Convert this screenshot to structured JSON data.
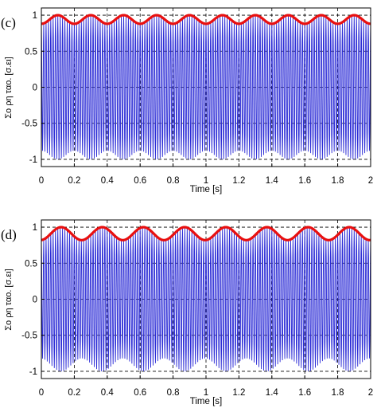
{
  "chart_data": [
    {
      "type": "line",
      "panel_label": "(c)",
      "xlabel": "Time [s]",
      "ylabel": "Σο ρη ταο. [σ.ει]",
      "xlim": [
        0,
        2
      ],
      "ylim": [
        -1.1,
        1.1
      ],
      "xticks": [
        "0",
        "0.2",
        "0.4",
        "0.6",
        "0.8",
        "1",
        "1.2",
        "1.4",
        "1.6",
        "1.8",
        "2"
      ],
      "yticks": [
        "1",
        "0.5",
        "0",
        "-0.5",
        "-1"
      ],
      "grid": "dashed",
      "colors": {
        "carrier": "#2b2bd6",
        "envelope": "#e81010"
      },
      "series": [
        {
          "role": "carrier",
          "carrier_cycles": 140,
          "amplitude_min": 0.88,
          "amplitude_max": 1.0,
          "envelope_period_s": 0.2,
          "envelope_first_peak_s": 0.1
        },
        {
          "role": "envelope",
          "x": [
            0,
            0.1,
            0.2,
            0.3,
            0.4,
            0.5,
            0.6,
            0.7,
            0.8,
            0.9,
            1.0,
            1.1,
            1.2,
            1.3,
            1.4,
            1.5,
            1.6,
            1.7,
            1.8,
            1.9,
            2.0
          ],
          "y": [
            0.88,
            1.0,
            0.88,
            1.0,
            0.88,
            1.0,
            0.88,
            1.0,
            0.88,
            1.0,
            0.88,
            1.0,
            0.88,
            1.0,
            0.88,
            1.0,
            0.88,
            1.0,
            0.88,
            1.0,
            0.88
          ]
        }
      ]
    },
    {
      "type": "line",
      "panel_label": "(d)",
      "xlabel": "Time [s]",
      "ylabel": "Σο ρη ταο. [σ.ει]",
      "xlim": [
        0,
        2
      ],
      "ylim": [
        -1.1,
        1.1
      ],
      "xticks": [
        "0",
        "0.2",
        "0.4",
        "0.6",
        "0.8",
        "1",
        "1.2",
        "1.4",
        "1.6",
        "1.8",
        "2"
      ],
      "yticks": [
        "1",
        "0.5",
        "0",
        "-0.5",
        "-1"
      ],
      "grid": "dashed",
      "colors": {
        "carrier": "#2b2bd6",
        "envelope": "#e81010"
      },
      "series": [
        {
          "role": "carrier",
          "carrier_cycles": 140,
          "amplitude_min": 0.82,
          "amplitude_max": 1.0,
          "envelope_period_s": 0.25,
          "envelope_first_peak_s": 0.12
        },
        {
          "role": "envelope",
          "x": [
            0,
            0.12,
            0.37,
            0.62,
            0.87,
            1.12,
            1.37,
            1.62,
            1.87,
            2.0
          ],
          "y": [
            0.84,
            1.0,
            1.0,
            1.0,
            1.0,
            1.0,
            1.0,
            1.0,
            1.0,
            0.9
          ]
        }
      ]
    }
  ]
}
